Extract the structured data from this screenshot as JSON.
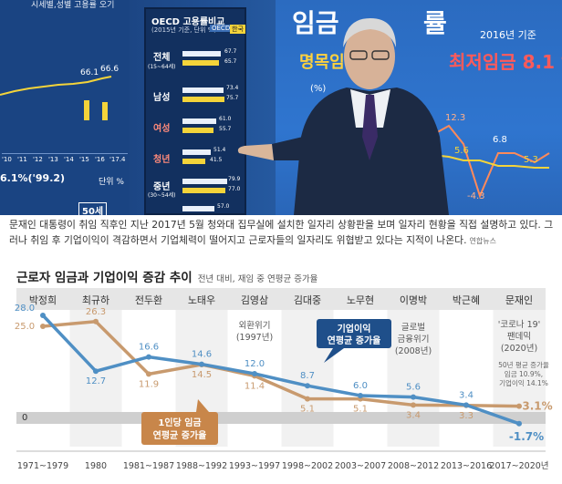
{
  "photo": {
    "left_panel": {
      "heading": "시세별,성별 고용률 오기",
      "values": [
        "66.1",
        "66.6"
      ],
      "xticks": [
        "'10",
        "'11",
        "'12",
        "'13",
        "'14",
        "'15",
        "'16",
        "'17.4"
      ],
      "footer_left": "6.1%('99.2)",
      "footer_unit": "단위 %",
      "footer_box": "50세"
    },
    "mid_panel": {
      "heading": "OECD 고용률비교",
      "subheading": "(2015년 기준, 단위 %)",
      "legend": [
        "OECD",
        "한국"
      ],
      "rows": [
        {
          "label": "전체",
          "sub": "(15~64세)",
          "oecd": "67.7",
          "korea": "65.7"
        },
        {
          "label": "남성",
          "sub": "",
          "oecd": "73.4",
          "korea": "75.7"
        },
        {
          "label": "여성",
          "sub": "",
          "oecd": "61.0",
          "korea": "55.7"
        },
        {
          "label": "청년",
          "sub": "",
          "oecd": "51.4",
          "korea": "41.5"
        },
        {
          "label": "중년",
          "sub": "(30~54세)",
          "oecd": "79.9",
          "korea": "77.0"
        },
        {
          "label": "",
          "sub": "",
          "oecd": "57.0",
          "korea": ""
        }
      ]
    },
    "right_panel": {
      "heading": "임금",
      "heading_tail": "률",
      "year_note": "2016년 기준",
      "label_left": "명목임",
      "label_right": "최저임금 8.1 %",
      "unit": "(%)",
      "values": [
        "12.3",
        "5.6",
        "6.8",
        "5.3",
        "-4.3"
      ]
    }
  },
  "caption": {
    "text": "문재인 대통령이 취임 직후인 지난 2017년 5월 청와대 집무실에 설치한 일자리 상황판을 보며 일자리 현황을 직접 설명하고 있다. 그러나 취임 후 기업이익이 격감하면서 기업체력이 떨어지고 근로자들의 일자리도 위협받고 있다는 지적이 나온다.",
    "source": "연합뉴스"
  },
  "chart_data": {
    "type": "line",
    "title": "근로자 임금과 기업이익 증감 추이",
    "subtitle": "전년 대비, 재임 중 연평균 증가율",
    "presidents": [
      "박정희",
      "최규하",
      "전두환",
      "노태우",
      "김영삼",
      "김대중",
      "노무현",
      "이명박",
      "박근혜",
      "문재인"
    ],
    "categories": [
      "1971~1979",
      "1980",
      "1981~1987",
      "1988~1992",
      "1993~1997",
      "1998~2002",
      "2003~2007",
      "2008~2012",
      "2013~2016",
      "2017~2020년"
    ],
    "series": [
      {
        "name": "기업이익 연평균 증가율",
        "color": "#4f8fc4",
        "values": [
          28.0,
          12.7,
          16.6,
          14.6,
          12.0,
          8.7,
          6.0,
          5.6,
          3.4,
          -1.7
        ],
        "labels": [
          "28.0",
          "12.7",
          "16.6",
          "14.6",
          "12.0",
          "8.7",
          "6.0",
          "5.6",
          "3.4",
          "-1.7%"
        ]
      },
      {
        "name": "1인당 임금 연평균 증가율",
        "color": "#c89a6e",
        "values": [
          25.0,
          26.3,
          11.9,
          14.5,
          11.4,
          5.1,
          5.1,
          3.4,
          3.3,
          3.1
        ],
        "labels": [
          "25.0",
          "26.3",
          "11.9",
          "14.5",
          "11.4",
          "5.1",
          "5.1",
          "3.4",
          "3.3",
          "3.1%"
        ]
      }
    ],
    "series_callouts": {
      "profit": [
        "기업이익",
        "연평균 증가율"
      ],
      "wage": [
        "1인당 임금",
        "연평균 증가율"
      ]
    },
    "annotations": [
      {
        "lines": [
          "외환위기",
          "(1997년)"
        ]
      },
      {
        "lines": [
          "글로벌",
          "금융위기",
          "(2008년)"
        ]
      },
      {
        "lines": [
          "'코로나 19'",
          "팬데믹",
          "(2020년)"
        ]
      },
      {
        "lines": [
          "50년 평균 증가율",
          "임금 10.9%,",
          "기업이익 14.1%"
        ]
      }
    ],
    "zero_label": "0",
    "ylim": [
      -3,
      29
    ],
    "grid": false,
    "colors": {
      "profit": "#4f8fc4",
      "wage": "#c89a6e",
      "callout_profit_bg": "#1f4f8a",
      "callout_wage_bg": "#c8864a",
      "header_band": "#e6e6e6",
      "zero_band": "#cfcfcf",
      "shade": "#f1f1f1"
    }
  }
}
